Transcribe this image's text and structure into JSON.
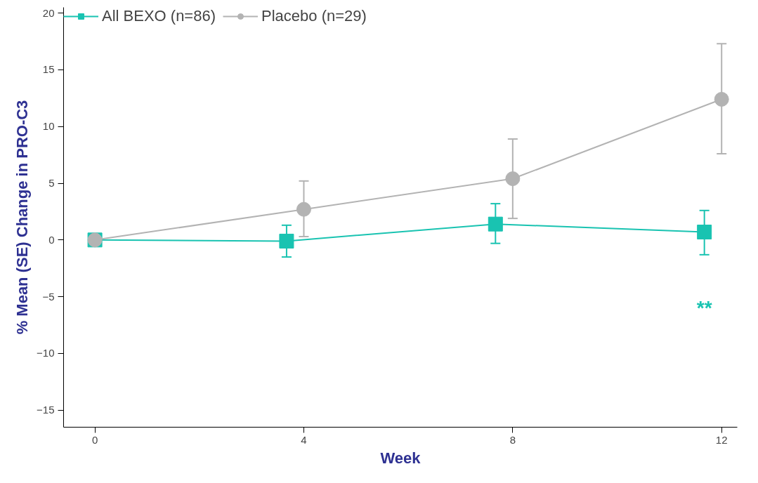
{
  "chart_data": {
    "type": "line",
    "xlabel": "Week",
    "ylabel": "% Mean (SE) Change in PRO-C3",
    "xlim": [
      -0.6,
      12.3
    ],
    "ylim": [
      -16.5,
      20.5
    ],
    "xticks": [
      0,
      4,
      8,
      12
    ],
    "yticks": [
      -15,
      -10,
      -5,
      0,
      5,
      10,
      15,
      20
    ],
    "legend": "top left",
    "grid": false,
    "series": [
      {
        "name": "All BEXO (n=86)",
        "color": "#19c3b1",
        "marker": "square",
        "x": [
          0,
          3.67,
          7.67,
          11.67
        ],
        "values": [
          0,
          -0.1,
          1.4,
          0.7
        ],
        "errors": [
          null,
          [
            -1.5,
            1.3
          ],
          [
            -0.3,
            3.2
          ],
          [
            -1.3,
            2.6
          ]
        ]
      },
      {
        "name": "Placebo (n=29)",
        "color": "#b3b3b3",
        "marker": "circle",
        "x": [
          0,
          4,
          8,
          12
        ],
        "values": [
          0,
          2.7,
          5.4,
          12.4
        ],
        "errors": [
          null,
          [
            0.3,
            5.2
          ],
          [
            1.9,
            8.9
          ],
          [
            7.6,
            17.3
          ]
        ]
      }
    ],
    "annotations": [
      "**"
    ]
  }
}
